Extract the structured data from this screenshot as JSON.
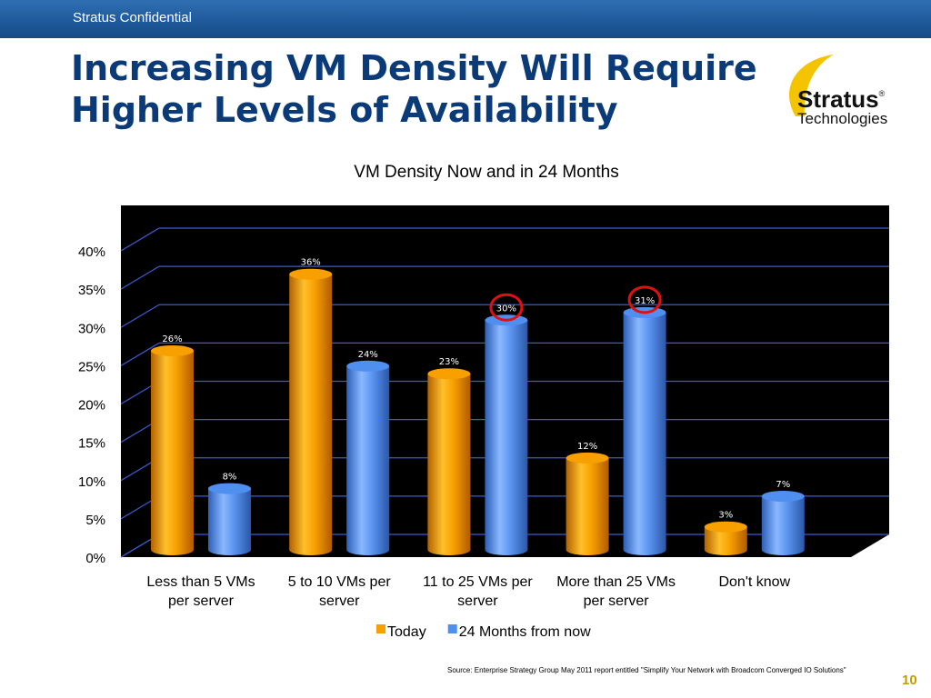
{
  "header": {
    "confidential": "Stratus Confidential",
    "title_line1": "Increasing VM Density Will Require",
    "title_line2": "Higher Levels of Availability"
  },
  "logo": {
    "name": "Stratus",
    "tm": "®",
    "sub": "Technologies"
  },
  "chart_data": {
    "type": "bar",
    "title": "VM Density Now and in 24 Months",
    "categories": [
      [
        "Less than 5 VMs",
        "per  server"
      ],
      [
        "5 to 10 VMs per",
        "server"
      ],
      [
        "11 to 25 VMs per",
        "server"
      ],
      [
        "More than 25 VMs",
        "per server"
      ],
      [
        "Don't know"
      ]
    ],
    "series": [
      {
        "name": "Today",
        "values": [
          26,
          36,
          23,
          12,
          3
        ],
        "labels": [
          "26%",
          "36%",
          "23%",
          "12%",
          "3%"
        ],
        "color": "#f7a000"
      },
      {
        "name": "24 Months from now",
        "values": [
          8,
          24,
          30,
          31,
          7
        ],
        "labels": [
          "8%",
          "24%",
          "30%",
          "31%",
          "7%"
        ],
        "color": "#4f8ff0"
      }
    ],
    "yticks": [
      "0%",
      "5%",
      "10%",
      "15%",
      "20%",
      "25%",
      "30%",
      "35%",
      "40%"
    ],
    "ylim": [
      0,
      40
    ],
    "grid": true,
    "legend": "bottom",
    "highlighted": [
      {
        "series": 1,
        "category": 2
      },
      {
        "series": 1,
        "category": 3
      }
    ],
    "highlight_color": "#e01010",
    "background_color": "#000000",
    "grid_color": "#3c5ad0"
  },
  "footer": {
    "source": "Source: Enterprise Strategy Group May 2011 report entitled \"Simplify Your Network with Broadcom Converged IO Solutions\"",
    "page": "10"
  }
}
